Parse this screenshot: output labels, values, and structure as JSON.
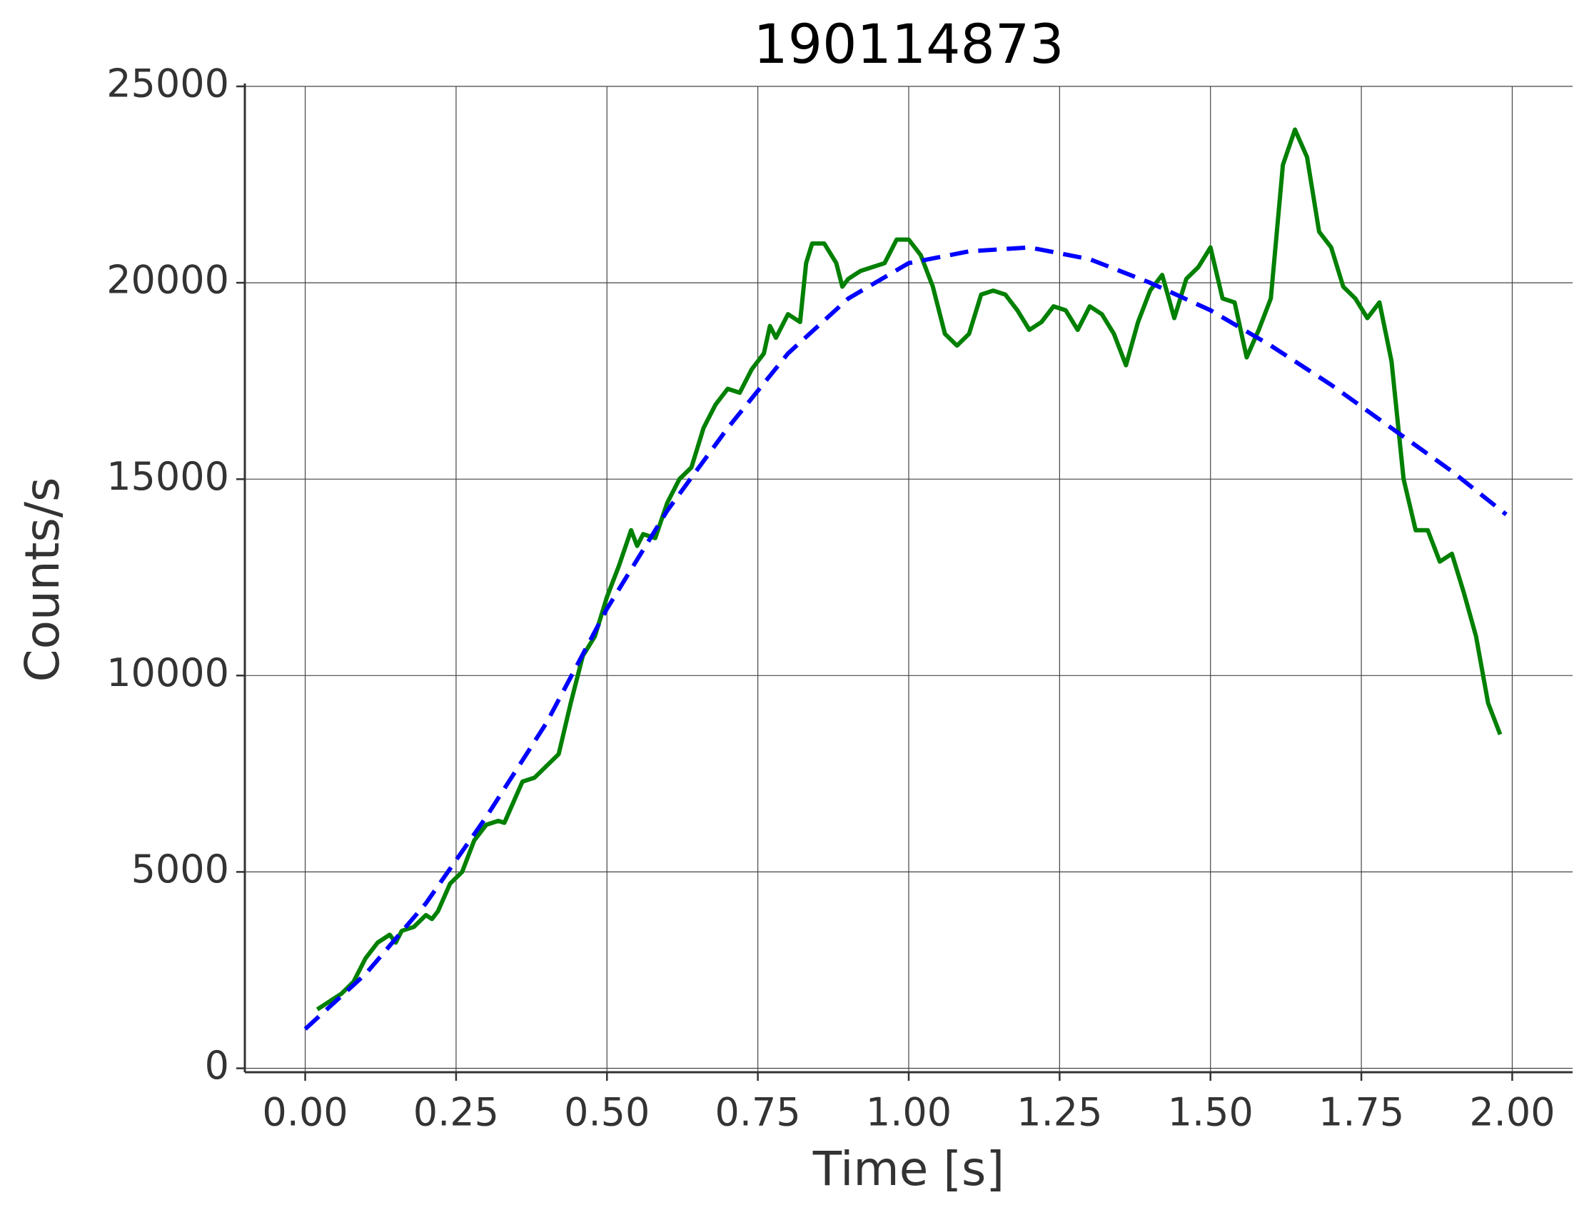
{
  "chart_data": {
    "type": "line",
    "title": "190114873",
    "xlabel": "Time [s]",
    "ylabel": "Counts/s",
    "series": [
      {
        "color": "#008000",
        "dash": false,
        "x": [
          0.02,
          0.04,
          0.06,
          0.08,
          0.1,
          0.12,
          0.14,
          0.15,
          0.16,
          0.18,
          0.2,
          0.21,
          0.22,
          0.24,
          0.26,
          0.28,
          0.3,
          0.32,
          0.33,
          0.34,
          0.36,
          0.38,
          0.4,
          0.42,
          0.44,
          0.46,
          0.48,
          0.5,
          0.52,
          0.54,
          0.55,
          0.56,
          0.58,
          0.6,
          0.62,
          0.64,
          0.66,
          0.68,
          0.7,
          0.72,
          0.74,
          0.76,
          0.77,
          0.78,
          0.8,
          0.82,
          0.83,
          0.84,
          0.86,
          0.88,
          0.89,
          0.9,
          0.92,
          0.94,
          0.96,
          0.98,
          1.0,
          1.02,
          1.04,
          1.06,
          1.08,
          1.1,
          1.12,
          1.14,
          1.16,
          1.18,
          1.2,
          1.22,
          1.24,
          1.26,
          1.28,
          1.3,
          1.32,
          1.34,
          1.36,
          1.38,
          1.4,
          1.42,
          1.44,
          1.46,
          1.48,
          1.5,
          1.52,
          1.54,
          1.56,
          1.58,
          1.6,
          1.62,
          1.64,
          1.66,
          1.68,
          1.7,
          1.72,
          1.74,
          1.76,
          1.78,
          1.8,
          1.82,
          1.84,
          1.86,
          1.88,
          1.9,
          1.92,
          1.94,
          1.96,
          1.98
        ],
        "values": [
          1500,
          1700,
          1900,
          2200,
          2800,
          3200,
          3400,
          3200,
          3500,
          3600,
          3900,
          3800,
          4000,
          4700,
          5000,
          5800,
          6200,
          6300,
          6250,
          6600,
          7300,
          7400,
          7700,
          8000,
          9300,
          10500,
          11000,
          12000,
          12800,
          13700,
          13300,
          13600,
          13500,
          14400,
          15000,
          15300,
          16300,
          16900,
          17300,
          17200,
          17800,
          18200,
          18900,
          18600,
          19200,
          19000,
          20500,
          21000,
          21000,
          20500,
          19900,
          20100,
          20300,
          20400,
          20500,
          21100,
          21100,
          20700,
          19900,
          18700,
          18400,
          18700,
          19700,
          19800,
          19700,
          19300,
          18800,
          19000,
          19400,
          19300,
          18800,
          19400,
          19200,
          18700,
          17900,
          19000,
          19800,
          20200,
          19100,
          20100,
          20400,
          20900,
          19600,
          19500,
          18100,
          18800,
          19600,
          23000,
          23900,
          23200,
          21300,
          20900,
          19900,
          19600,
          19100,
          19500,
          18000,
          15000,
          13700,
          13700,
          12900,
          13100,
          12100,
          11000,
          9300,
          8500
        ]
      },
      {
        "color": "#0000ff",
        "dash": true,
        "x": [
          0,
          0.1,
          0.2,
          0.3,
          0.4,
          0.5,
          0.6,
          0.7,
          0.8,
          0.9,
          1.0,
          1.1,
          1.2,
          1.3,
          1.4,
          1.5,
          1.6,
          1.7,
          1.8,
          1.9,
          1.99
        ],
        "values": [
          1000,
          2400,
          4200,
          6400,
          8800,
          11700,
          14200,
          16300,
          18200,
          19600,
          20500,
          20800,
          20900,
          20600,
          20000,
          19300,
          18400,
          17400,
          16300,
          15200,
          14100
        ]
      }
    ],
    "xlim": [
      -0.1,
      2.1
    ],
    "ylim": [
      -100,
      25000
    ],
    "xticks": [
      {
        "value": 0,
        "label": "0.00"
      },
      {
        "value": 0.25,
        "label": "0.25"
      },
      {
        "value": 0.5,
        "label": "0.50"
      },
      {
        "value": 0.75,
        "label": "0.75"
      },
      {
        "value": 1,
        "label": "1.00"
      },
      {
        "value": 1.25,
        "label": "1.25"
      },
      {
        "value": 1.5,
        "label": "1.50"
      },
      {
        "value": 1.75,
        "label": "1.75"
      },
      {
        "value": 2,
        "label": "2.00"
      }
    ],
    "yticks": [
      0,
      5000,
      10000,
      15000,
      20000,
      25000
    ],
    "grid": true
  }
}
